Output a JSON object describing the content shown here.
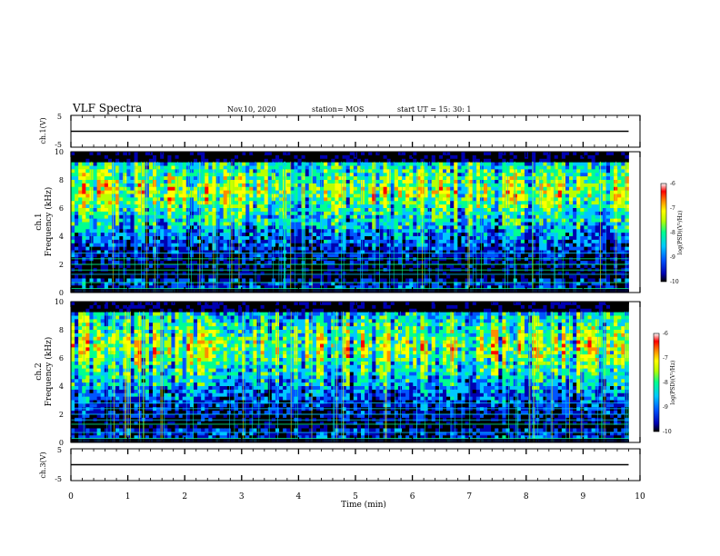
{
  "header": {
    "title": "VLF Spectra",
    "date": "Nov.10, 2020",
    "station": "station= MOS",
    "start": "start  UT =   15: 30: 1"
  },
  "colors": {
    "spectrum": [
      "#000000",
      "#0000b0",
      "#0055ff",
      "#00c8ff",
      "#00ff90",
      "#b8ff00",
      "#ffff00",
      "#ff8c00",
      "#ff0000",
      "#ffffff"
    ]
  },
  "chart_data": [
    {
      "type": "line",
      "ylabel": "ch.1(V)",
      "ylim": [
        -5,
        5
      ],
      "yticks": [
        "5",
        "-5"
      ],
      "xlim": [
        0,
        10
      ],
      "series": [
        {
          "x": [
            0,
            9.8
          ],
          "values": [
            0,
            0
          ]
        }
      ]
    },
    {
      "type": "heatmap",
      "ylabel": "ch.1",
      "ylabel2": "Frequency (kHz)",
      "ylim": [
        0,
        10
      ],
      "yticks": [
        "0",
        "2",
        "4",
        "6",
        "8",
        "10"
      ],
      "xlim": [
        0,
        10
      ],
      "data_end_min": 9.8,
      "colorbar": {
        "label": "log(PSD)(V²/Hz)",
        "range": [
          -10,
          -6
        ],
        "ticks": [
          "-6",
          "-7",
          "-8",
          "-9",
          "-10"
        ]
      }
    },
    {
      "type": "heatmap",
      "ylabel": "ch.2",
      "ylabel2": "Frequency (kHz)",
      "ylim": [
        0,
        10
      ],
      "yticks": [
        "0",
        "2",
        "4",
        "6",
        "8",
        "10"
      ],
      "xlim": [
        0,
        10
      ],
      "data_end_min": 9.8,
      "colorbar": {
        "label": "log(PSD)(V²/Hz)",
        "range": [
          -10,
          -6
        ],
        "ticks": [
          "-6",
          "-7",
          "-8",
          "-9",
          "-10"
        ]
      }
    },
    {
      "type": "line",
      "ylabel": "ch.3(V)",
      "ylim": [
        -5,
        5
      ],
      "yticks": [
        "5",
        "-5"
      ],
      "xlim": [
        0,
        10
      ],
      "xlabel": "Time  (min)",
      "xticks": [
        "0",
        "1",
        "2",
        "3",
        "4",
        "5",
        "6",
        "7",
        "8",
        "9",
        "10"
      ],
      "series": [
        {
          "x": [
            0,
            9.8
          ],
          "values": [
            0,
            0
          ]
        }
      ]
    }
  ]
}
